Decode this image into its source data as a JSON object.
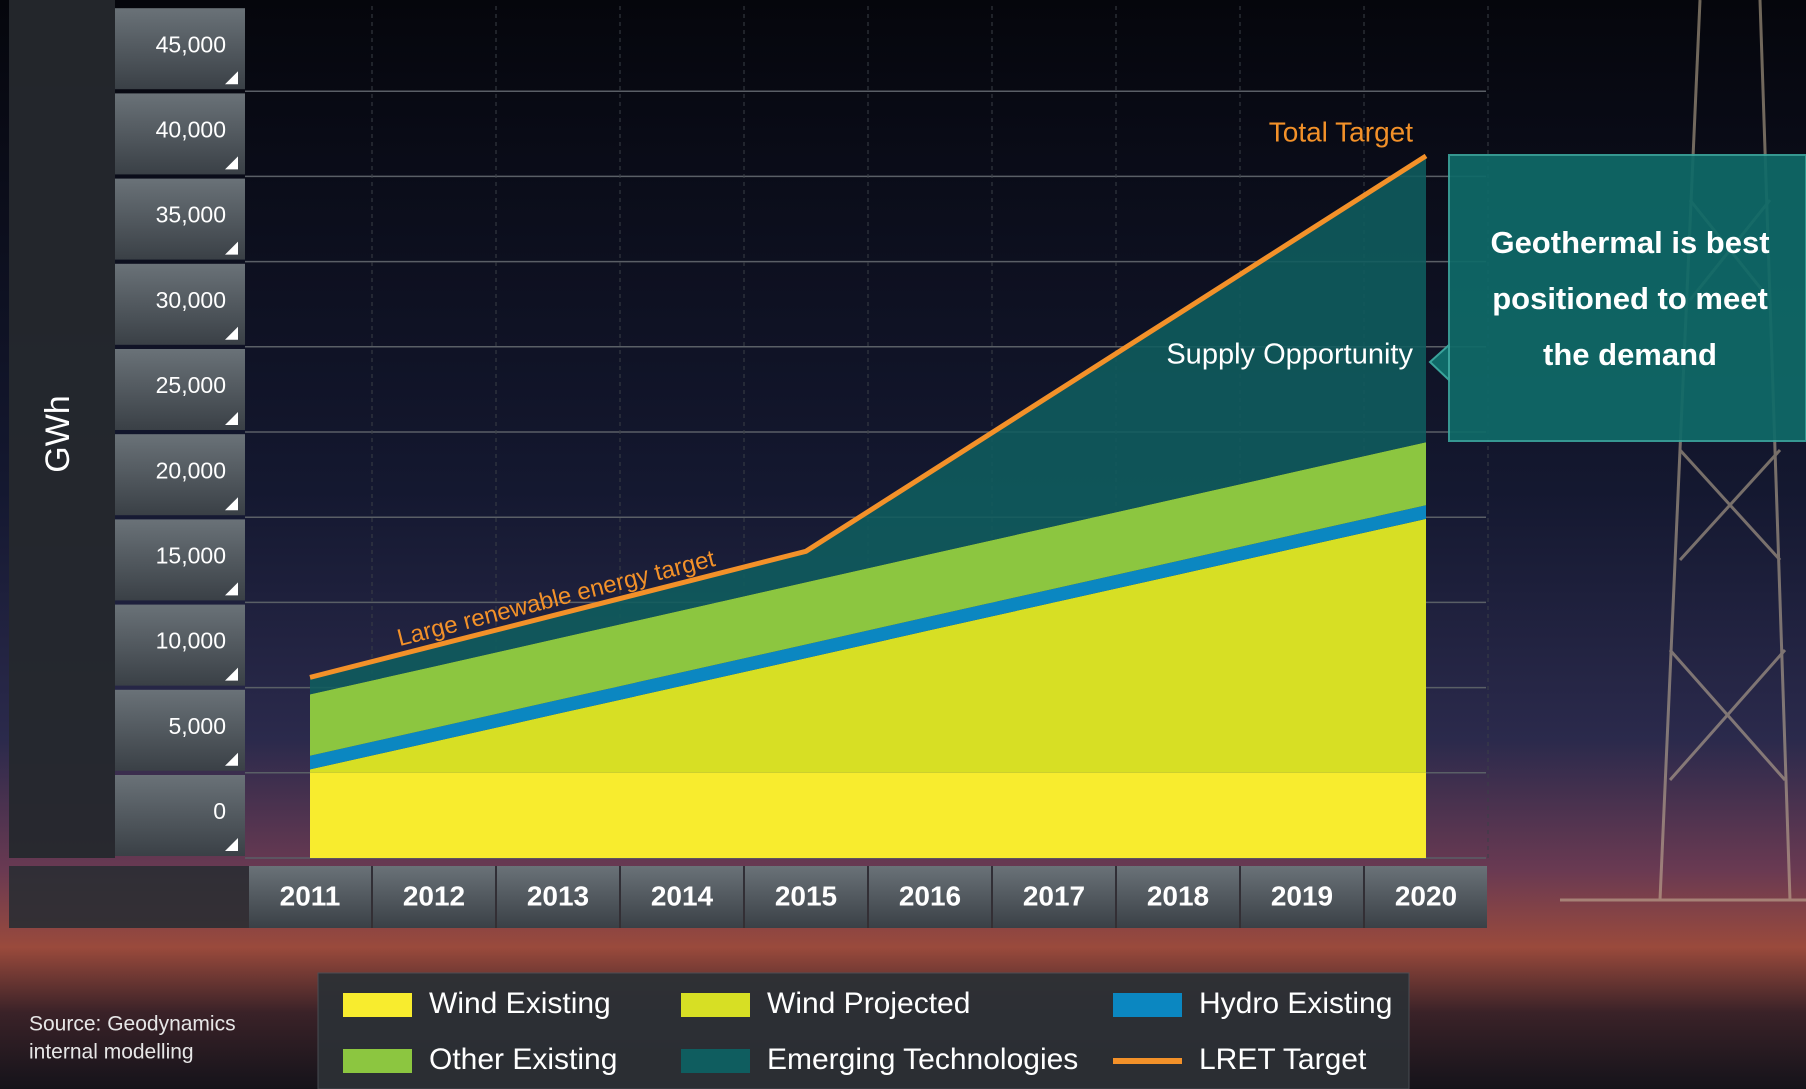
{
  "chart_data": {
    "type": "area",
    "y_label": "GWh",
    "categories": [
      "2011",
      "2012",
      "2013",
      "2014",
      "2015",
      "2016",
      "2017",
      "2018",
      "2019",
      "2020"
    ],
    "ylim": [
      0,
      50000
    ],
    "yticks": [
      0,
      {
        "value": 5000,
        "label": "5,000"
      },
      {
        "value": 10000,
        "label": "10,000"
      },
      {
        "value": 15000,
        "label": "15,000"
      },
      {
        "value": 20000,
        "label": "20,000"
      },
      {
        "value": 25000,
        "label": "25,000"
      },
      {
        "value": 30000,
        "label": "30,000"
      },
      {
        "value": 35000,
        "label": "35,000"
      },
      {
        "value": 40000,
        "label": "40,000"
      },
      {
        "value": 45000,
        "label": "45,000"
      }
    ],
    "grid": true,
    "series": [
      {
        "name": "Wind Existing",
        "type": "area",
        "color": "#f8ec2e",
        "values": [
          5000,
          5000,
          5000,
          5000,
          5000,
          5000,
          5000,
          5000,
          5000,
          5000
        ]
      },
      {
        "name": "Wind Projected",
        "type": "area",
        "color": "#d7df24",
        "values": [
          200,
          1830,
          3470,
          5100,
          6730,
          8370,
          10000,
          11630,
          13270,
          14900
        ]
      },
      {
        "name": "Hydro Existing",
        "type": "area",
        "color": "#0b87c1",
        "values": [
          800,
          800,
          800,
          800,
          800,
          800,
          800,
          800,
          800,
          800
        ]
      },
      {
        "name": "Other Existing",
        "type": "area",
        "color": "#8cc640",
        "values": [
          3600,
          3610,
          3620,
          3630,
          3650,
          3660,
          3670,
          3680,
          3690,
          3700
        ]
      },
      {
        "name": "Emerging Technologies",
        "type": "area",
        "color": "#0f5d5f",
        "values": [
          1000,
          1210,
          1410,
          1620,
          1820,
          4810,
          7810,
          10810,
          13800,
          16800
        ]
      },
      {
        "name": "LRET Target",
        "type": "line",
        "color": "#f39129",
        "values": [
          10600,
          12450,
          14300,
          16150,
          18000,
          22640,
          27280,
          31920,
          36560,
          41200
        ]
      }
    ],
    "annotations": {
      "total_target": "Total Target",
      "supply_opportunity": "Supply Opportunity",
      "target_line_label": "Large renewable energy target"
    },
    "callout": [
      "Geothermal is best",
      "positioned to meet",
      "the demand"
    ],
    "source": [
      "Source: Geodynamics",
      "internal modelling"
    ]
  }
}
